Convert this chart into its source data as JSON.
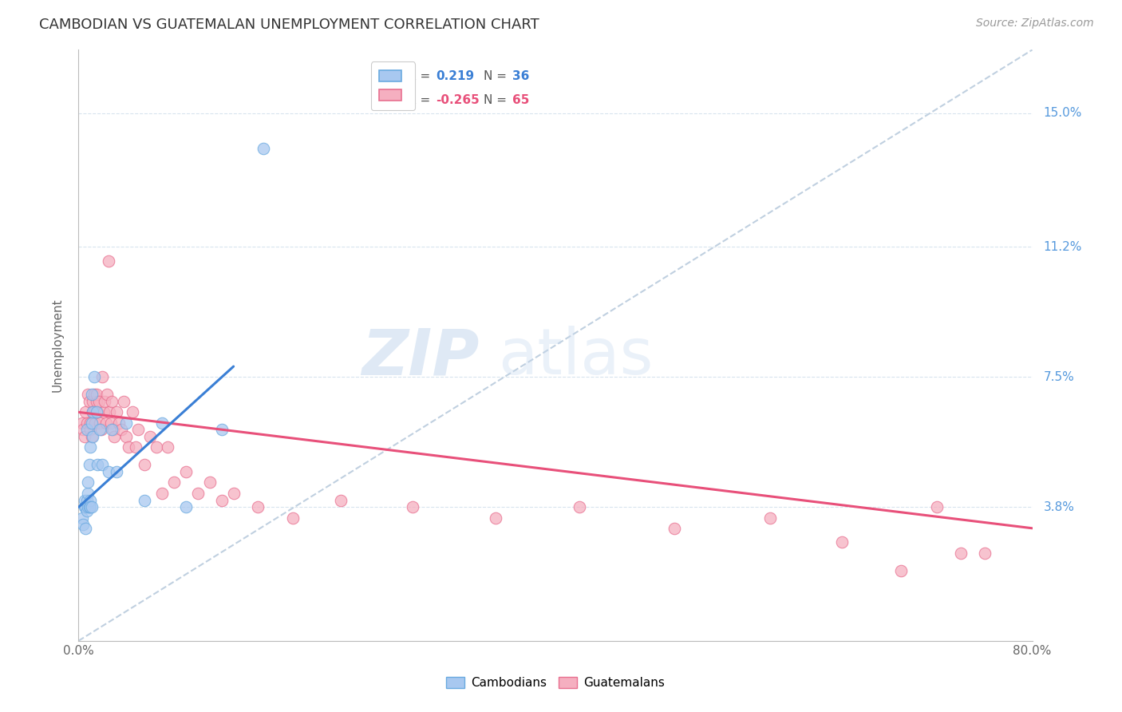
{
  "title": "CAMBODIAN VS GUATEMALAN UNEMPLOYMENT CORRELATION CHART",
  "source": "Source: ZipAtlas.com",
  "ylabel": "Unemployment",
  "ytick_labels": [
    "3.8%",
    "7.5%",
    "11.2%",
    "15.0%"
  ],
  "ytick_values": [
    0.038,
    0.075,
    0.112,
    0.15
  ],
  "xtick_positions": [
    0.0,
    0.1,
    0.2,
    0.3,
    0.4,
    0.5,
    0.6,
    0.7,
    0.8
  ],
  "xlim": [
    0.0,
    0.8
  ],
  "ylim": [
    0.0,
    0.168
  ],
  "watermark_zip": "ZIP",
  "watermark_atlas": "atlas",
  "cambodian_R": "0.219",
  "cambodian_N": "36",
  "guatemalan_R": "-0.265",
  "guatemalan_N": "65",
  "cambodian_color": "#a8c8f0",
  "cambodian_edge_color": "#6aaae0",
  "guatemalan_color": "#f5afc0",
  "guatemalan_edge_color": "#e87090",
  "cambodian_line_color": "#3a7fd5",
  "guatemalan_line_color": "#e8507a",
  "diagonal_color": "#c0d0e0",
  "grid_color": "#d8e4ee",
  "right_label_color": "#5599dd",
  "cambodian_x": [
    0.003,
    0.004,
    0.005,
    0.005,
    0.006,
    0.006,
    0.007,
    0.007,
    0.007,
    0.008,
    0.008,
    0.008,
    0.009,
    0.009,
    0.01,
    0.01,
    0.01,
    0.011,
    0.011,
    0.011,
    0.012,
    0.012,
    0.013,
    0.015,
    0.016,
    0.018,
    0.02,
    0.025,
    0.028,
    0.032,
    0.04,
    0.055,
    0.07,
    0.09,
    0.12,
    0.155
  ],
  "cambodian_y": [
    0.035,
    0.033,
    0.038,
    0.04,
    0.032,
    0.038,
    0.037,
    0.04,
    0.06,
    0.042,
    0.038,
    0.045,
    0.038,
    0.05,
    0.04,
    0.038,
    0.055,
    0.062,
    0.07,
    0.038,
    0.065,
    0.058,
    0.075,
    0.065,
    0.05,
    0.06,
    0.05,
    0.048,
    0.06,
    0.048,
    0.062,
    0.04,
    0.062,
    0.038,
    0.06,
    0.14
  ],
  "guatemalan_x": [
    0.003,
    0.004,
    0.005,
    0.006,
    0.007,
    0.008,
    0.009,
    0.01,
    0.01,
    0.011,
    0.012,
    0.012,
    0.013,
    0.013,
    0.014,
    0.015,
    0.015,
    0.016,
    0.017,
    0.018,
    0.019,
    0.02,
    0.021,
    0.022,
    0.023,
    0.024,
    0.025,
    0.026,
    0.027,
    0.028,
    0.029,
    0.03,
    0.032,
    0.034,
    0.036,
    0.038,
    0.04,
    0.042,
    0.045,
    0.048,
    0.05,
    0.055,
    0.06,
    0.065,
    0.07,
    0.075,
    0.08,
    0.09,
    0.1,
    0.11,
    0.12,
    0.13,
    0.15,
    0.18,
    0.22,
    0.28,
    0.35,
    0.42,
    0.5,
    0.58,
    0.64,
    0.69,
    0.72,
    0.74,
    0.76
  ],
  "guatemalan_y": [
    0.062,
    0.06,
    0.058,
    0.065,
    0.062,
    0.07,
    0.068,
    0.06,
    0.062,
    0.058,
    0.068,
    0.065,
    0.07,
    0.065,
    0.062,
    0.068,
    0.07,
    0.065,
    0.068,
    0.062,
    0.06,
    0.075,
    0.065,
    0.068,
    0.062,
    0.07,
    0.108,
    0.065,
    0.062,
    0.068,
    0.06,
    0.058,
    0.065,
    0.062,
    0.06,
    0.068,
    0.058,
    0.055,
    0.065,
    0.055,
    0.06,
    0.05,
    0.058,
    0.055,
    0.042,
    0.055,
    0.045,
    0.048,
    0.042,
    0.045,
    0.04,
    0.042,
    0.038,
    0.035,
    0.04,
    0.038,
    0.035,
    0.038,
    0.032,
    0.035,
    0.028,
    0.02,
    0.038,
    0.025,
    0.025
  ],
  "camb_line_x": [
    0.0,
    0.13
  ],
  "camb_line_y_start": 0.038,
  "camb_line_y_end": 0.078,
  "guat_line_x": [
    0.0,
    0.8
  ],
  "guat_line_y_start": 0.065,
  "guat_line_y_end": 0.032,
  "diag_line_x": [
    0.0,
    0.8
  ],
  "diag_line_y": [
    0.0,
    0.168
  ]
}
